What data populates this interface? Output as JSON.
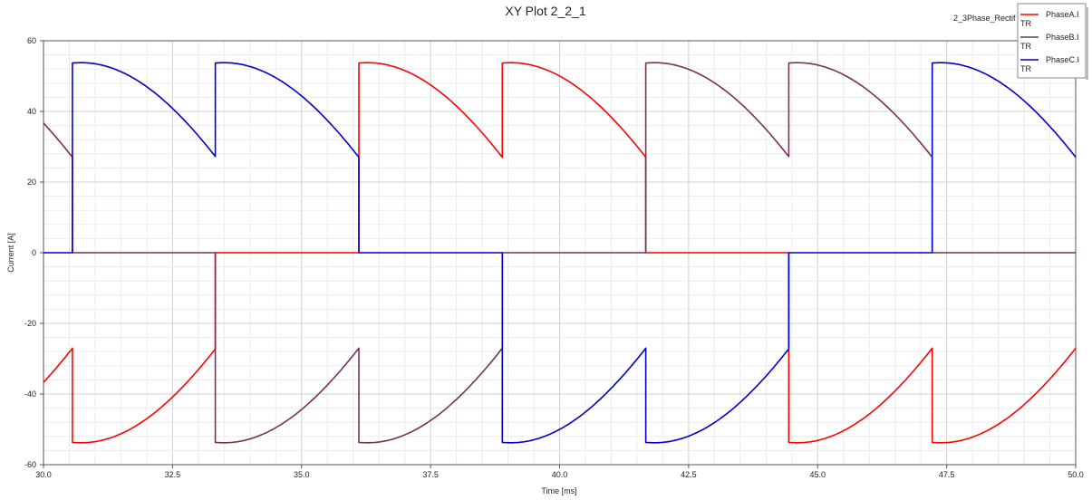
{
  "chart_data": {
    "type": "line",
    "title": "XY Plot 2_2_1",
    "corner_label": "2_3Phase_Rectif",
    "xlabel": "Time [ms]",
    "ylabel": "Current [A]",
    "xlim": [
      30.0,
      50.0
    ],
    "ylim": [
      -60,
      60
    ],
    "x_ticks": [
      "30.0",
      "32.5",
      "35.0",
      "37.5",
      "40.0",
      "42.5",
      "45.0",
      "47.5",
      "50.0"
    ],
    "y_ticks": [
      "60",
      "40",
      "20",
      "0",
      "-20",
      "-40",
      "-60"
    ],
    "grid": true,
    "legend_position": "top-right",
    "segment_period_ms": 2.778,
    "commutation_times_ms": [
      30.56,
      33.33,
      36.11,
      38.89,
      41.67,
      44.44,
      47.22,
      50.0
    ],
    "peak_current": 53.8,
    "commutation_current": 26.9,
    "series": [
      {
        "name": "PhaseA.I",
        "legend_sub": "TR",
        "color": "#ff0000",
        "segments": [
          {
            "start": 30.0,
            "end": 30.56,
            "sign": -1,
            "phase_offset": 2.22
          },
          {
            "start": 30.56,
            "end": 33.33,
            "sign": -1
          },
          {
            "start": 33.33,
            "end": 36.11,
            "sign": 0
          },
          {
            "start": 36.11,
            "end": 38.89,
            "sign": 1
          },
          {
            "start": 38.89,
            "end": 41.67,
            "sign": 1
          },
          {
            "start": 41.67,
            "end": 44.44,
            "sign": 0
          },
          {
            "start": 44.44,
            "end": 47.22,
            "sign": -1
          },
          {
            "start": 47.22,
            "end": 50.0,
            "sign": -1
          }
        ]
      },
      {
        "name": "PhaseB.I",
        "legend_sub": "TR",
        "color": "#7a3050",
        "segments": [
          {
            "start": 30.0,
            "end": 30.56,
            "sign": 1,
            "phase_offset": 2.22
          },
          {
            "start": 30.56,
            "end": 33.33,
            "sign": 0
          },
          {
            "start": 33.33,
            "end": 36.11,
            "sign": -1
          },
          {
            "start": 36.11,
            "end": 38.89,
            "sign": -1
          },
          {
            "start": 38.89,
            "end": 41.67,
            "sign": 0
          },
          {
            "start": 41.67,
            "end": 44.44,
            "sign": 1
          },
          {
            "start": 44.44,
            "end": 47.22,
            "sign": 1
          },
          {
            "start": 47.22,
            "end": 50.0,
            "sign": 0
          }
        ]
      },
      {
        "name": "PhaseC.I",
        "legend_sub": "TR",
        "color": "#0000cc",
        "segments": [
          {
            "start": 30.0,
            "end": 30.56,
            "sign": 0
          },
          {
            "start": 30.56,
            "end": 33.33,
            "sign": 1
          },
          {
            "start": 33.33,
            "end": 36.11,
            "sign": 1
          },
          {
            "start": 36.11,
            "end": 38.89,
            "sign": 0
          },
          {
            "start": 38.89,
            "end": 41.67,
            "sign": -1
          },
          {
            "start": 41.67,
            "end": 44.44,
            "sign": -1
          },
          {
            "start": 44.44,
            "end": 47.22,
            "sign": 0
          },
          {
            "start": 47.22,
            "end": 50.0,
            "sign": 1
          }
        ]
      }
    ]
  }
}
